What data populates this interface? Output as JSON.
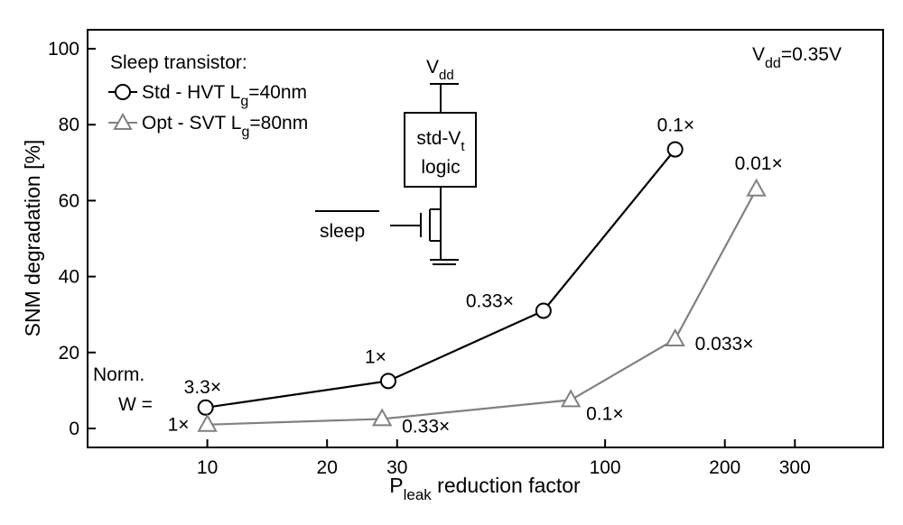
{
  "chart_data": {
    "type": "line",
    "title": "",
    "xscale": "log",
    "xlim": [
      5,
      500
    ],
    "ylim": [
      -5,
      105
    ],
    "xticks": [
      10,
      20,
      30,
      100,
      200,
      300
    ],
    "xtick_labels": [
      "10",
      "20",
      "30",
      "100",
      "200",
      "300"
    ],
    "yticks": [
      0,
      20,
      40,
      60,
      80,
      100
    ],
    "ytick_labels": [
      "0",
      "20",
      "40",
      "60",
      "80",
      "100"
    ],
    "xlabel": {
      "main": "P",
      "sub": "leak",
      "rest": " reduction factor"
    },
    "ylabel": "SNM degradation [%]",
    "grid": false,
    "annotation": {
      "main": "V",
      "sub": "dd",
      "rest": "=0.35V"
    },
    "legend": {
      "title": "Sleep transistor:",
      "placement": "top-left"
    },
    "norm_label_line1": "Norm.",
    "norm_label_line2": "W =",
    "series": [
      {
        "name": "Std - HVT L=40nm",
        "name_parts": {
          "main": "Std - HVT L",
          "sub": "g",
          "rest": "=40nm"
        },
        "marker": "circle",
        "color": "#000000",
        "x": [
          9.9,
          28.5,
          70,
          150
        ],
        "y": [
          5.5,
          12.5,
          31,
          73.5
        ],
        "labels": [
          "3.3×",
          "1×",
          "0.33×",
          "0.1×"
        ]
      },
      {
        "name": "Opt - SVT L=80nm",
        "name_parts": {
          "main": "Opt - SVT L",
          "sub": "g",
          "rest": "=80nm"
        },
        "marker": "triangle",
        "color": "#808080",
        "x": [
          10,
          27.5,
          82,
          150,
          240
        ],
        "y": [
          1,
          2.5,
          7.5,
          23.5,
          63
        ],
        "labels": [
          "1×",
          "0.33×",
          "0.1×",
          "0.033×",
          "0.01×"
        ]
      }
    ]
  },
  "inset": {
    "vdd": {
      "main": "V",
      "sub": "dd"
    },
    "block_line1": {
      "main": "std-V",
      "sub": "t"
    },
    "block_line2": "logic",
    "sleep_label": "sleep"
  }
}
